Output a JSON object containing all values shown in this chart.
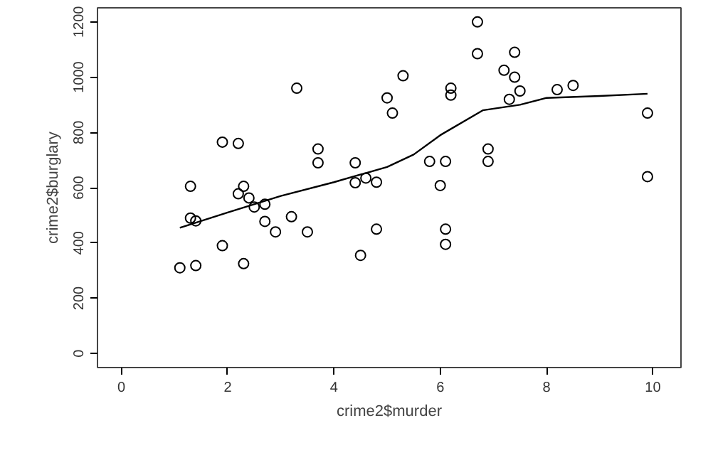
{
  "chart_data": {
    "type": "scatter",
    "xlabel": "crime2$murder",
    "ylabel": "crime2$burglary",
    "xlim": [
      -0.45,
      10.53
    ],
    "ylim": [
      -51,
      1251
    ],
    "xticks": [
      0,
      2,
      4,
      6,
      8,
      10
    ],
    "yticks": [
      0,
      200,
      400,
      600,
      800,
      1000,
      1200
    ],
    "grid": false,
    "marker": "circle",
    "series": [
      {
        "color": "#000000",
        "x": [
          1.1,
          1.3,
          1.3,
          1.4,
          1.4,
          1.9,
          1.9,
          2.2,
          2.2,
          2.3,
          2.3,
          2.4,
          2.5,
          2.7,
          2.7,
          2.9,
          3.2,
          3.3,
          3.5,
          3.7,
          3.7,
          4.4,
          4.4,
          4.5,
          4.6,
          4.8,
          4.8,
          5.0,
          5.1,
          5.3,
          5.8,
          6.0,
          6.1,
          6.1,
          6.1,
          6.2,
          6.2,
          6.7,
          6.7,
          6.9,
          6.9,
          7.2,
          7.3,
          7.4,
          7.4,
          7.5,
          8.2,
          8.5,
          9.9,
          9.9
        ],
        "values": [
          310,
          605,
          490,
          480,
          318,
          765,
          390,
          760,
          578,
          605,
          325,
          563,
          530,
          540,
          478,
          440,
          495,
          960,
          440,
          740,
          690,
          690,
          618,
          355,
          635,
          620,
          450,
          925,
          870,
          1005,
          695,
          608,
          450,
          395,
          695,
          960,
          935,
          1200,
          1085,
          740,
          695,
          1025,
          920,
          1090,
          1000,
          950,
          955,
          970,
          870,
          640
        ]
      },
      {
        "type": "line",
        "color": "#000000",
        "line_style": "solid",
        "marker": "none",
        "x": [
          1.1,
          2,
          3,
          4,
          5,
          5.5,
          6,
          6.8,
          7.5,
          8,
          9,
          9.9
        ],
        "values": [
          455,
          510,
          570,
          620,
          675,
          720,
          790,
          880,
          900,
          925,
          932,
          940
        ]
      }
    ]
  }
}
